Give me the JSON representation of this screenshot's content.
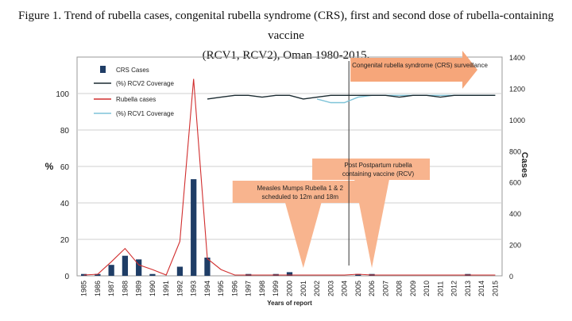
{
  "figure_title": {
    "line1": "Figure 1. Trend of rubella cases, congenital rubella syndrome (CRS), first and second dose of rubella-containing vaccine",
    "line2": "(RCV1, RCV2), Oman 1980-2015."
  },
  "colors": {
    "crs_bars": "#1f3d66",
    "rcv2_line": "#1a2a30",
    "rubella_line": "#d12e2e",
    "rcv1_line": "#7ec3d8",
    "annotation_fill": "#f8b48e",
    "crs_arrow_fill": "#f6a67a",
    "grid": "#cfcfcf",
    "plot_border": "#9a9a9a"
  },
  "chart_data": {
    "type": "bar",
    "categories": [
      "1985",
      "1986",
      "1987",
      "1988",
      "1989",
      "1990",
      "1991",
      "1992",
      "1993",
      "1994",
      "1995",
      "1996",
      "1997",
      "1998",
      "1999",
      "2000",
      "2001",
      "2002",
      "2003",
      "2004",
      "2005",
      "2006",
      "2007",
      "2008",
      "2009",
      "2010",
      "2011",
      "2012",
      "2013",
      "2014",
      "2015"
    ],
    "xlabel": "Years of report",
    "ylabel_left": "%",
    "ylabel_right": "Cases",
    "ylim_left": [
      0,
      120
    ],
    "ylim_right": [
      0,
      1400
    ],
    "yticks_left": [
      0,
      20,
      40,
      60,
      80,
      100
    ],
    "yticks_right": [
      0,
      200,
      400,
      600,
      800,
      1000,
      1200,
      1400
    ],
    "grid": true,
    "legend_position": "top-left",
    "series": [
      {
        "name": "CRS Cases",
        "type": "bar",
        "axis": "left",
        "values": [
          1,
          1,
          6,
          11,
          9,
          1,
          0,
          5,
          53,
          10,
          0,
          0,
          1,
          0,
          1,
          2,
          0,
          0,
          0,
          0,
          1,
          1,
          0,
          0,
          0,
          0,
          0,
          0,
          1,
          0,
          0
        ]
      },
      {
        "name": "(%) RCV2 Coverage",
        "type": "line",
        "axis": "left",
        "values": [
          null,
          null,
          null,
          null,
          null,
          null,
          null,
          null,
          null,
          97,
          98,
          99,
          99,
          98,
          99,
          99,
          97,
          98,
          99,
          99,
          99,
          99,
          99,
          98,
          99,
          99,
          98,
          99,
          99,
          99,
          99
        ]
      },
      {
        "name": "Rubella cases",
        "type": "line",
        "axis": "right",
        "values": [
          5,
          10,
          90,
          175,
          70,
          40,
          5,
          220,
          1260,
          110,
          40,
          5,
          5,
          5,
          5,
          5,
          5,
          5,
          5,
          5,
          10,
          5,
          5,
          5,
          5,
          5,
          5,
          5,
          5,
          5,
          5
        ]
      },
      {
        "name": "(%) RCV1 Coverage",
        "type": "line",
        "axis": "left",
        "values": [
          null,
          null,
          null,
          null,
          null,
          null,
          null,
          null,
          null,
          null,
          null,
          null,
          null,
          null,
          null,
          null,
          null,
          97,
          95,
          95,
          98,
          99,
          99,
          99,
          99,
          99,
          99,
          99,
          99,
          99,
          99
        ]
      }
    ],
    "annotations": [
      {
        "text_lines": [
          "Measles Mumps Rubella 1 & 2",
          "scheduled to 12m and 18m"
        ],
        "points_to": "2001"
      },
      {
        "text_lines": [
          "Post Postpartum rubella",
          "containing vaccine (RCV)"
        ],
        "points_to": "2006"
      },
      {
        "text_lines": [
          "Congenital rubella syndrome (CRS) surveillance"
        ],
        "starts_at": "2004"
      }
    ]
  }
}
